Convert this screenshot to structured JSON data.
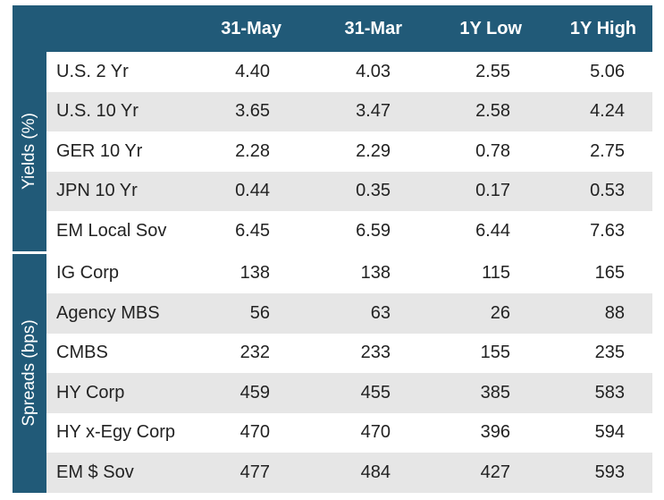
{
  "chart_data": {
    "type": "table",
    "columns": [
      "31-May",
      "31-Mar",
      "1Y Low",
      "1Y High"
    ],
    "groups": [
      {
        "label": "Yields (%)",
        "rows": [
          {
            "label": "U.S. 2 Yr",
            "values": [
              "4.40",
              "4.03",
              "2.55",
              "5.06"
            ]
          },
          {
            "label": "U.S. 10 Yr",
            "values": [
              "3.65",
              "3.47",
              "2.58",
              "4.24"
            ]
          },
          {
            "label": "GER 10 Yr",
            "values": [
              "2.28",
              "2.29",
              "0.78",
              "2.75"
            ]
          },
          {
            "label": "JPN 10 Yr",
            "values": [
              "0.44",
              "0.35",
              "0.17",
              "0.53"
            ]
          },
          {
            "label": "EM Local Sov",
            "values": [
              "6.45",
              "6.59",
              "6.44",
              "7.63"
            ]
          }
        ]
      },
      {
        "label": "Spreads (bps)",
        "rows": [
          {
            "label": "IG Corp",
            "values": [
              "138",
              "138",
              "115",
              "165"
            ]
          },
          {
            "label": "Agency MBS",
            "values": [
              "56",
              "63",
              "26",
              "88"
            ]
          },
          {
            "label": "CMBS",
            "values": [
              "232",
              "233",
              "155",
              "235"
            ]
          },
          {
            "label": "HY Corp",
            "values": [
              "459",
              "455",
              "385",
              "583"
            ]
          },
          {
            "label": "HY x-Egy Corp",
            "values": [
              "470",
              "470",
              "396",
              "594"
            ]
          },
          {
            "label": "EM $ Sov",
            "values": [
              "477",
              "484",
              "427",
              "593"
            ]
          }
        ]
      }
    ]
  },
  "colors": {
    "header_bg": "#215a78",
    "stripe": "#e6e6e6",
    "text": "#222222"
  }
}
